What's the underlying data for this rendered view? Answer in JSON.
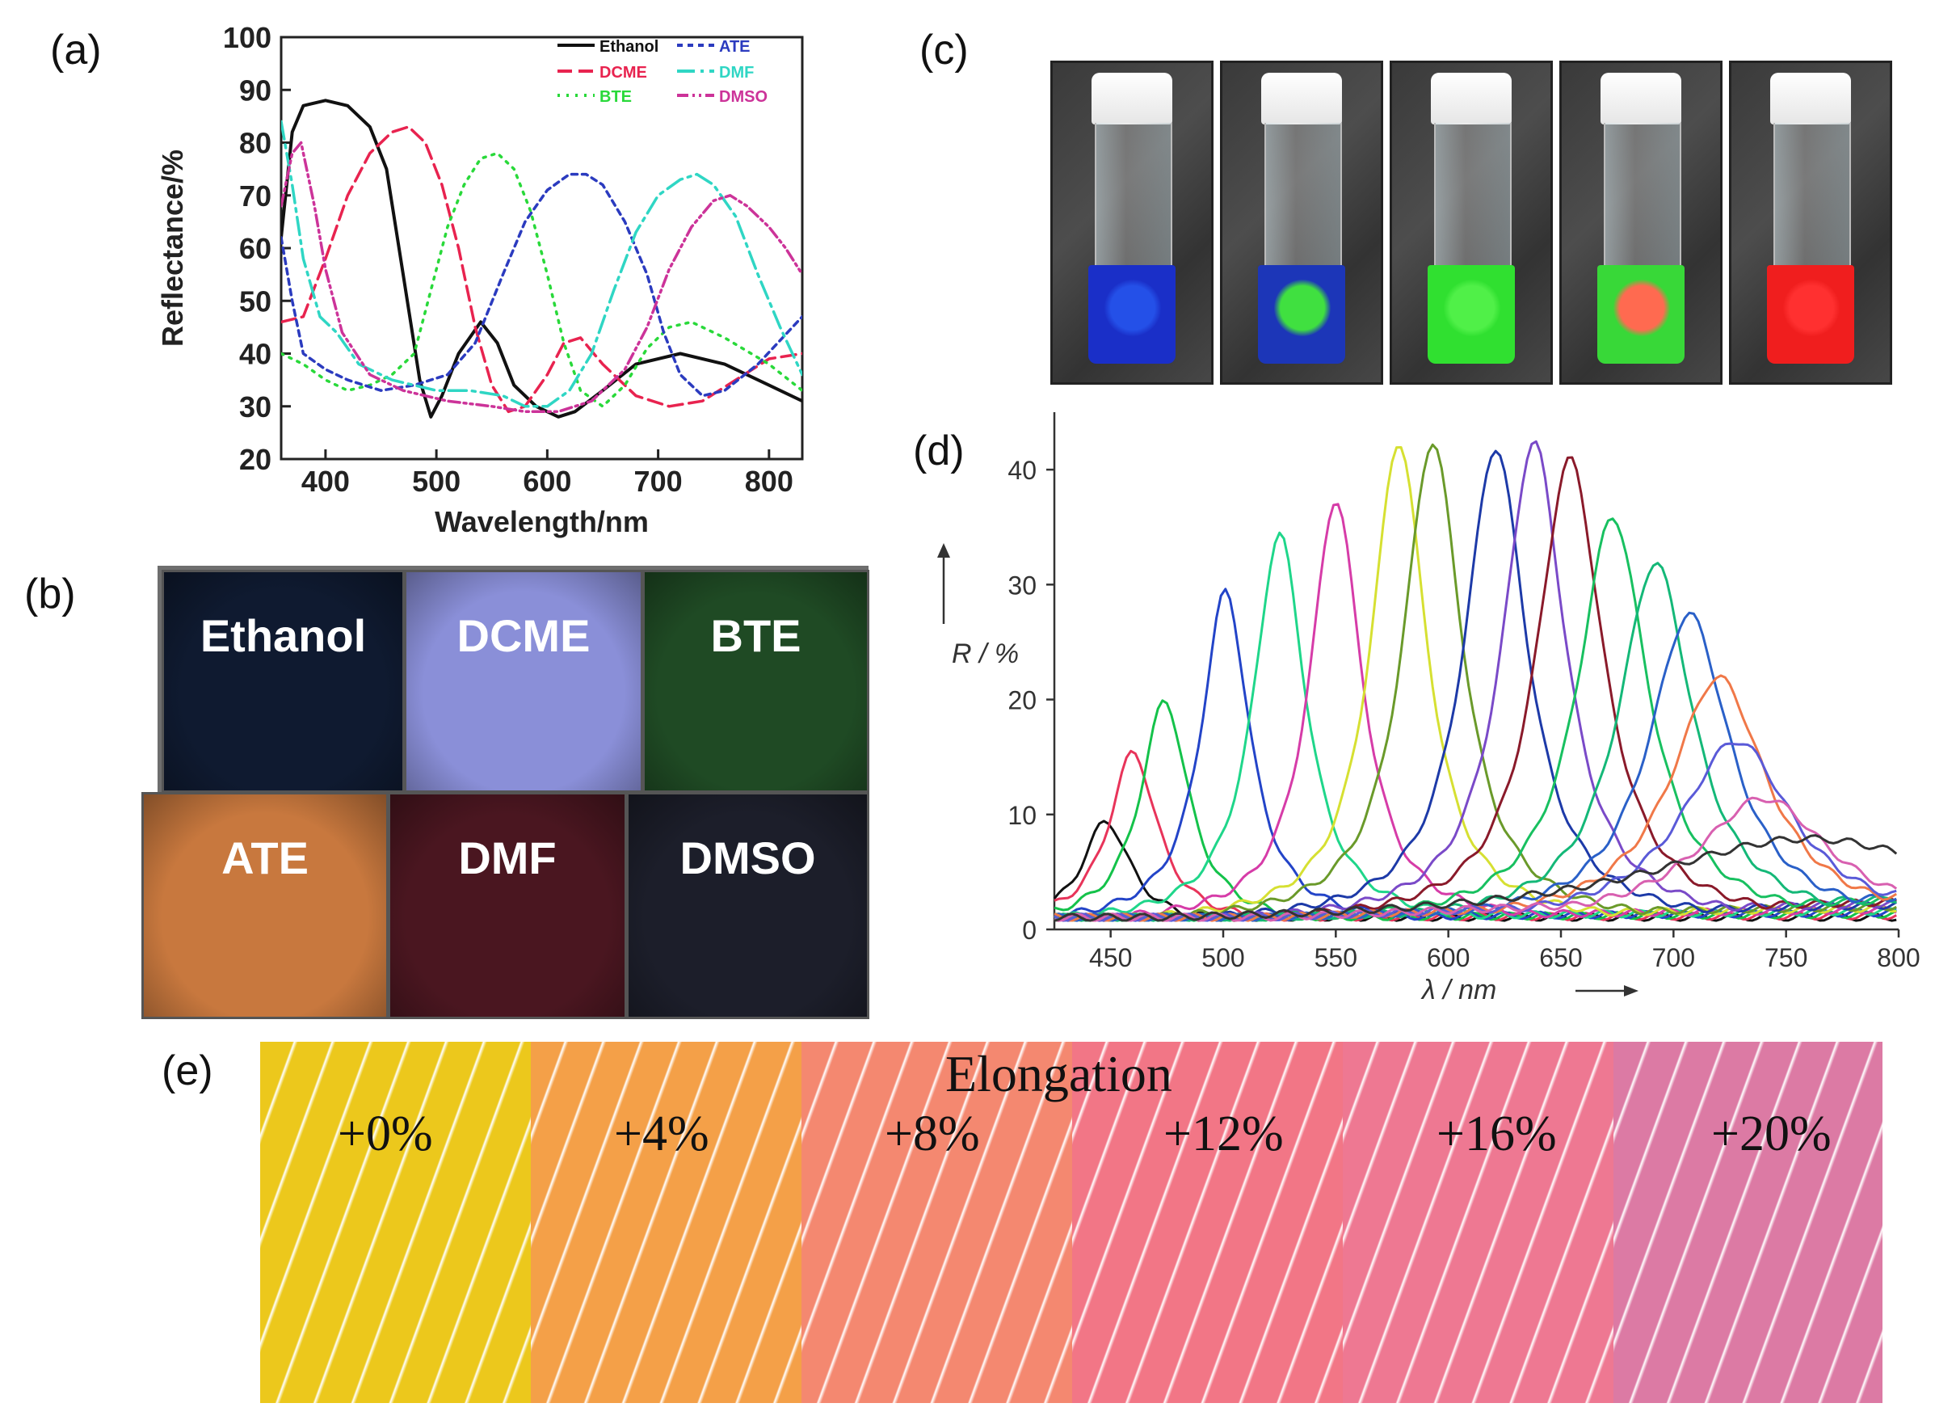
{
  "panels": {
    "a": "(a)",
    "b": "(b)",
    "c": "(c)",
    "d": "(d)",
    "e": "(e)"
  },
  "chart_data": [
    {
      "type": "line",
      "title": "",
      "xlabel": "Wavelength/nm",
      "ylabel": "Reflectance/%",
      "xlim": [
        360,
        830
      ],
      "ylim": [
        20,
        100
      ],
      "xticks": [
        "400",
        "500",
        "600",
        "700",
        "800"
      ],
      "yticks": [
        "20",
        "30",
        "40",
        "50",
        "60",
        "70",
        "80",
        "90",
        "100"
      ],
      "legend": [
        "Ethanol",
        "DCME",
        "BTE",
        "ATE",
        "DMF",
        "DMSO"
      ],
      "legend_position": "top-right",
      "series": [
        {
          "name": "Ethanol",
          "color": "#111111",
          "dash": "",
          "points": [
            [
              360,
              62
            ],
            [
              370,
              82
            ],
            [
              380,
              87
            ],
            [
              400,
              88
            ],
            [
              420,
              87
            ],
            [
              440,
              83
            ],
            [
              455,
              75
            ],
            [
              470,
              55
            ],
            [
              485,
              35
            ],
            [
              495,
              28
            ],
            [
              505,
              32
            ],
            [
              520,
              40
            ],
            [
              540,
              46
            ],
            [
              555,
              42
            ],
            [
              570,
              34
            ],
            [
              590,
              30
            ],
            [
              610,
              28
            ],
            [
              625,
              29
            ],
            [
              650,
              33
            ],
            [
              680,
              38
            ],
            [
              720,
              40
            ],
            [
              760,
              38
            ],
            [
              800,
              34
            ],
            [
              830,
              31
            ]
          ]
        },
        {
          "name": "DCME",
          "color": "#e8234f",
          "dash": "18,8",
          "points": [
            [
              360,
              46
            ],
            [
              380,
              47
            ],
            [
              400,
              58
            ],
            [
              420,
              70
            ],
            [
              440,
              78
            ],
            [
              460,
              82
            ],
            [
              475,
              83
            ],
            [
              490,
              80
            ],
            [
              505,
              72
            ],
            [
              520,
              60
            ],
            [
              535,
              45
            ],
            [
              550,
              34
            ],
            [
              565,
              29
            ],
            [
              580,
              30
            ],
            [
              600,
              36
            ],
            [
              615,
              42
            ],
            [
              630,
              43
            ],
            [
              650,
              38
            ],
            [
              680,
              32
            ],
            [
              710,
              30
            ],
            [
              740,
              31
            ],
            [
              770,
              35
            ],
            [
              800,
              39
            ],
            [
              830,
              40
            ]
          ]
        },
        {
          "name": "BTE",
          "color": "#29d93a",
          "dash": "3,8",
          "points": [
            [
              360,
              40
            ],
            [
              380,
              38
            ],
            [
              400,
              35
            ],
            [
              420,
              33
            ],
            [
              440,
              34
            ],
            [
              460,
              36
            ],
            [
              480,
              40
            ],
            [
              495,
              52
            ],
            [
              510,
              64
            ],
            [
              525,
              72
            ],
            [
              540,
              77
            ],
            [
              555,
              78
            ],
            [
              570,
              75
            ],
            [
              585,
              67
            ],
            [
              600,
              55
            ],
            [
              615,
              42
            ],
            [
              630,
              33
            ],
            [
              650,
              30
            ],
            [
              670,
              34
            ],
            [
              690,
              41
            ],
            [
              710,
              45
            ],
            [
              730,
              46
            ],
            [
              760,
              43
            ],
            [
              800,
              38
            ],
            [
              830,
              33
            ]
          ]
        },
        {
          "name": "ATE",
          "color": "#2b3bbf",
          "dash": "7,6",
          "points": [
            [
              360,
              62
            ],
            [
              370,
              50
            ],
            [
              380,
              40
            ],
            [
              400,
              37
            ],
            [
              420,
              35
            ],
            [
              450,
              33
            ],
            [
              480,
              34
            ],
            [
              510,
              36
            ],
            [
              535,
              42
            ],
            [
              560,
              55
            ],
            [
              580,
              65
            ],
            [
              600,
              71
            ],
            [
              620,
              74
            ],
            [
              635,
              74
            ],
            [
              650,
              72
            ],
            [
              670,
              65
            ],
            [
              690,
              55
            ],
            [
              705,
              44
            ],
            [
              720,
              36
            ],
            [
              740,
              32
            ],
            [
              760,
              33
            ],
            [
              790,
              38
            ],
            [
              830,
              47
            ]
          ]
        },
        {
          "name": "DMF",
          "color": "#2fd6c4",
          "dash": "22,7,4,7",
          "points": [
            [
              360,
              84
            ],
            [
              370,
              72
            ],
            [
              380,
              58
            ],
            [
              395,
              47
            ],
            [
              410,
              44
            ],
            [
              430,
              38
            ],
            [
              460,
              35
            ],
            [
              500,
              33
            ],
            [
              530,
              33
            ],
            [
              560,
              32
            ],
            [
              580,
              30
            ],
            [
              600,
              30
            ],
            [
              620,
              33
            ],
            [
              640,
              40
            ],
            [
              660,
              52
            ],
            [
              680,
              63
            ],
            [
              700,
              70
            ],
            [
              720,
              73
            ],
            [
              735,
              74
            ],
            [
              750,
              72
            ],
            [
              770,
              66
            ],
            [
              790,
              55
            ],
            [
              810,
              45
            ],
            [
              830,
              36
            ]
          ]
        },
        {
          "name": "DMSO",
          "color": "#cc3399",
          "dash": "14,5,3,5,3,5",
          "points": [
            [
              360,
              68
            ],
            [
              370,
              78
            ],
            [
              378,
              80
            ],
            [
              390,
              68
            ],
            [
              400,
              56
            ],
            [
              415,
              44
            ],
            [
              440,
              36
            ],
            [
              470,
              33
            ],
            [
              510,
              31
            ],
            [
              550,
              30
            ],
            [
              580,
              29
            ],
            [
              610,
              29
            ],
            [
              640,
              31
            ],
            [
              670,
              37
            ],
            [
              690,
              45
            ],
            [
              710,
              56
            ],
            [
              730,
              64
            ],
            [
              750,
              69
            ],
            [
              765,
              70
            ],
            [
              780,
              68
            ],
            [
              800,
              64
            ],
            [
              815,
              60
            ],
            [
              830,
              55
            ]
          ]
        }
      ]
    },
    {
      "type": "line",
      "title": "",
      "xlabel": "λ / nm",
      "ylabel": "R / %",
      "xlim": [
        425,
        800
      ],
      "ylim": [
        0,
        45
      ],
      "xticks": [
        "450",
        "500",
        "550",
        "600",
        "650",
        "700",
        "750",
        "800"
      ],
      "yticks": [
        "0",
        "10",
        "20",
        "30",
        "40"
      ],
      "series": [
        {
          "name": "peak-448",
          "color": "#111111",
          "peak": 448,
          "height": 9,
          "width": 13
        },
        {
          "name": "peak-460",
          "color": "#e8345a",
          "peak": 460,
          "height": 15,
          "width": 13
        },
        {
          "name": "peak-474",
          "color": "#14c24a",
          "peak": 474,
          "height": 19.5,
          "width": 13
        },
        {
          "name": "peak-501",
          "color": "#2344c8",
          "peak": 501,
          "height": 29,
          "width": 13
        },
        {
          "name": "peak-525",
          "color": "#1fd68a",
          "peak": 525,
          "height": 34,
          "width": 14
        },
        {
          "name": "peak-550",
          "color": "#d63ca8",
          "peak": 550,
          "height": 37,
          "width": 14
        },
        {
          "name": "peak-578",
          "color": "#d6e032",
          "peak": 578,
          "height": 42,
          "width": 15
        },
        {
          "name": "peak-593",
          "color": "#6a9a2a",
          "peak": 593,
          "height": 42,
          "width": 16
        },
        {
          "name": "peak-621",
          "color": "#1d3aa8",
          "peak": 621,
          "height": 41.5,
          "width": 17
        },
        {
          "name": "peak-638",
          "color": "#7a4ac8",
          "peak": 638,
          "height": 42,
          "width": 17
        },
        {
          "name": "peak-654",
          "color": "#8a1a2a",
          "peak": 654,
          "height": 40.5,
          "width": 18
        },
        {
          "name": "peak-673",
          "color": "#18c060",
          "peak": 673,
          "height": 35.5,
          "width": 19
        },
        {
          "name": "peak-692",
          "color": "#14b878",
          "peak": 692,
          "height": 31.5,
          "width": 20
        },
        {
          "name": "peak-707",
          "color": "#2a60c8",
          "peak": 707,
          "height": 27,
          "width": 22
        },
        {
          "name": "peak-720",
          "color": "#f07848",
          "peak": 720,
          "height": 21.5,
          "width": 26
        },
        {
          "name": "peak-728",
          "color": "#5a5ad8",
          "peak": 728,
          "height": 16,
          "width": 30
        },
        {
          "name": "peak-740",
          "color": "#d860b0",
          "peak": 740,
          "height": 11,
          "width": 36
        },
        {
          "name": "peak-760",
          "color": "#333333",
          "peak": 760,
          "height": 7.5,
          "width": 90
        }
      ]
    }
  ],
  "photo_b": {
    "tiles": [
      {
        "label": "Ethanol",
        "color": "#0f1a30"
      },
      {
        "label": "DCME",
        "color": "#8a8fd8"
      },
      {
        "label": "BTE",
        "color": "#1f4a24"
      },
      {
        "label": "ATE",
        "color": "#c8783e"
      },
      {
        "label": "DMF",
        "color": "#4a1620"
      },
      {
        "label": "DMSO",
        "color": "#1c1e2a"
      }
    ]
  },
  "photo_c": {
    "vials": [
      {
        "liquid": "#1a2fc8",
        "spot": "#2450e8"
      },
      {
        "liquid": "#1c36b8",
        "spot": "#40e040"
      },
      {
        "liquid": "#30e030",
        "spot": "#50f048"
      },
      {
        "liquid": "#38d838",
        "spot": "#ff6a50"
      },
      {
        "liquid": "#f01e1e",
        "spot": "#ff3030"
      }
    ]
  },
  "photo_e": {
    "title": "Elongation",
    "segments": [
      {
        "label": "+0%",
        "color": "#ecc81c"
      },
      {
        "label": "+4%",
        "color": "#f4a048"
      },
      {
        "label": "+8%",
        "color": "#f48870"
      },
      {
        "label": "+12%",
        "color": "#f27686"
      },
      {
        "label": "+16%",
        "color": "#ee7892"
      },
      {
        "label": "+20%",
        "color": "#dc7aa4"
      }
    ]
  }
}
